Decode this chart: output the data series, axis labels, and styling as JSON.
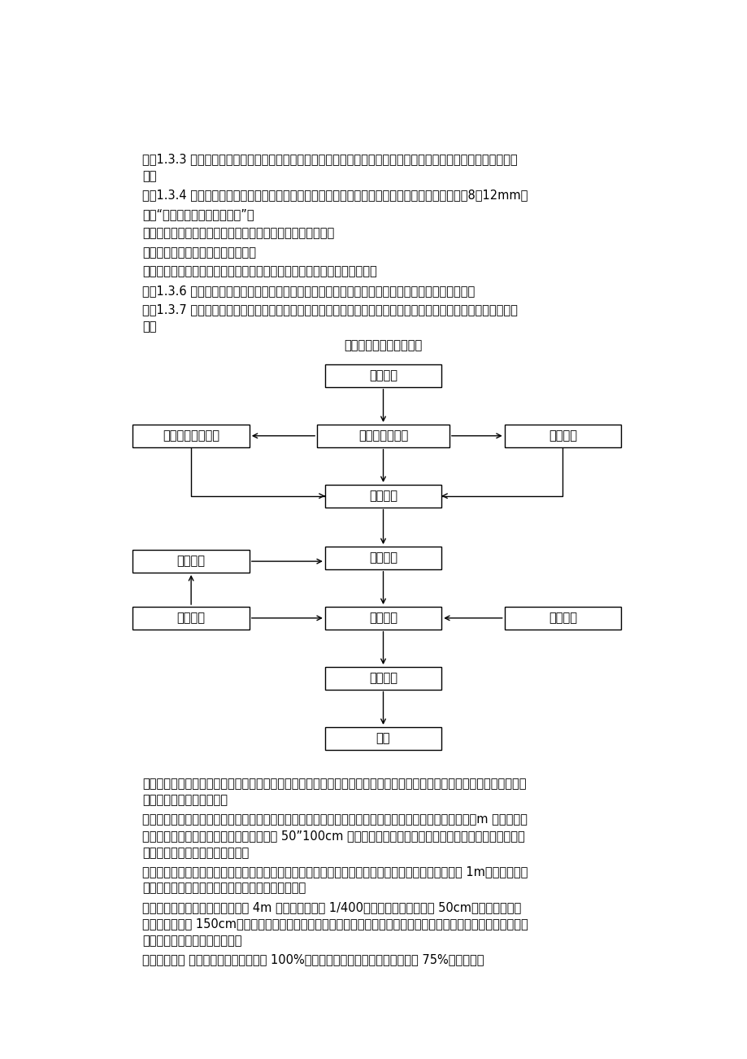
{
  "bg_color": "#ffffff",
  "text_color": "#000000",
  "paragraphs": [
    {
      "indent": true,
      "text": "1.3.3 浆砂砖体必须采用座浆法砂筑，随铺浆随砂筑，拉线砂筑，砂筑时，砖块宜分层卧砂，上下错缝，内外搞砂。"
    },
    {
      "indent": true,
      "text": "1.3.4 在铺砂砂浆之前，砖应洒水湿润，使其外表充分吸收，但不得残留积水，灯缝厚度一般为8～12mm。"
    },
    {
      "indent": false,
      "text": "　　“平齐、砖稳、浆满、错缝”。"
    },
    {
      "indent": false,
      "text": "　　平齐：同一层的砖块砂平，以利上下层水平缝结合密实；"
    },
    {
      "indent": false,
      "text": "　　浆满：所有砂缝必须饱满密实；"
    },
    {
      "indent": false,
      "text": "　　错缝：必须上下错缝，内外搞接，不允许有顺流水向通缝和竖向通缝。"
    },
    {
      "indent": true,
      "text": "1.3.6 砂体的结构尺寸和位置，必须符合施工详图规定，其砂体的允许偏差应符合有关标准规定。"
    },
    {
      "indent": true,
      "text": "1.3.7 浆砂砖外表勾缝应保持块石砂合的自然接缝，力求美观，匀称、外表平整。砂体外表溅染的砂浆应去除干净。"
    }
  ],
  "flowchart_title": "砂筑工程施工工艺流程图",
  "node_labels": {
    "A": "测量放样",
    "B": "基坑开挟、排水",
    "C": "检查、验收、签证",
    "D": "基底处理",
    "E": "根底施工",
    "F": "砂块湿润",
    "G": "砂浆搅拌",
    "H": "质量检查",
    "I": "砂块砂筑",
    "J": "挂线施工",
    "K": "砂体勾缝",
    "L": "养生"
  },
  "bottom_paragraphs": [
    {
      "indent": true,
      "text": "垒层及根底模板：安装前先复查基底垒层标高与中心线位置，弹出边线，模板面标高应符合设计要求；模板应支撑牢固，侧模支撑底部应加垒木。"
    },
    {
      "indent": true,
      "text": "构造柱模板：安装时根据相邻墙体的纵模轴线，立柱模。柱模底部一侧要留清扫口；由地面起每隔一２m 留一道施工口，以便灌入砖及放入振捣器；柱模板每隔 50”100cm 加一道柱箍，以防柱模爆裂；柱模板与墙体之间的缝隙采用塑胶纸夹实，防止浇筑砖渗浆。"
    },
    {
      "indent": true,
      "text": "圈梁模板：主要节点构造柱顶或墙顶做好控制轴线点，标高控制线；梁侧模的卡箍的间距不应大于 1m；梁侧模与墙体之间的缝隙采用水泥砂浆抒实，防止浇筑砖渗浆。"
    },
    {
      "indent": true,
      "text": "楼板模板：板跨度大于或等于 4m 的板，跨中起拱 1/400；模板搞栅间距不大于 50cm，模档或牟杠之间，间距不大于 150cm；底层地面应忆实，支柱之间应设水平拉杆与斜拉杆，支柱下应垒楕子和通长脚手板；模板安装以每节间从四周向中央铺设。"
    },
    {
      "indent": true,
      "text": "模板撤除 悬挡构件模板应待砖强度 100%到达后再撤模，其余构件砖强度到达 75%以上可撤模"
    }
  ]
}
